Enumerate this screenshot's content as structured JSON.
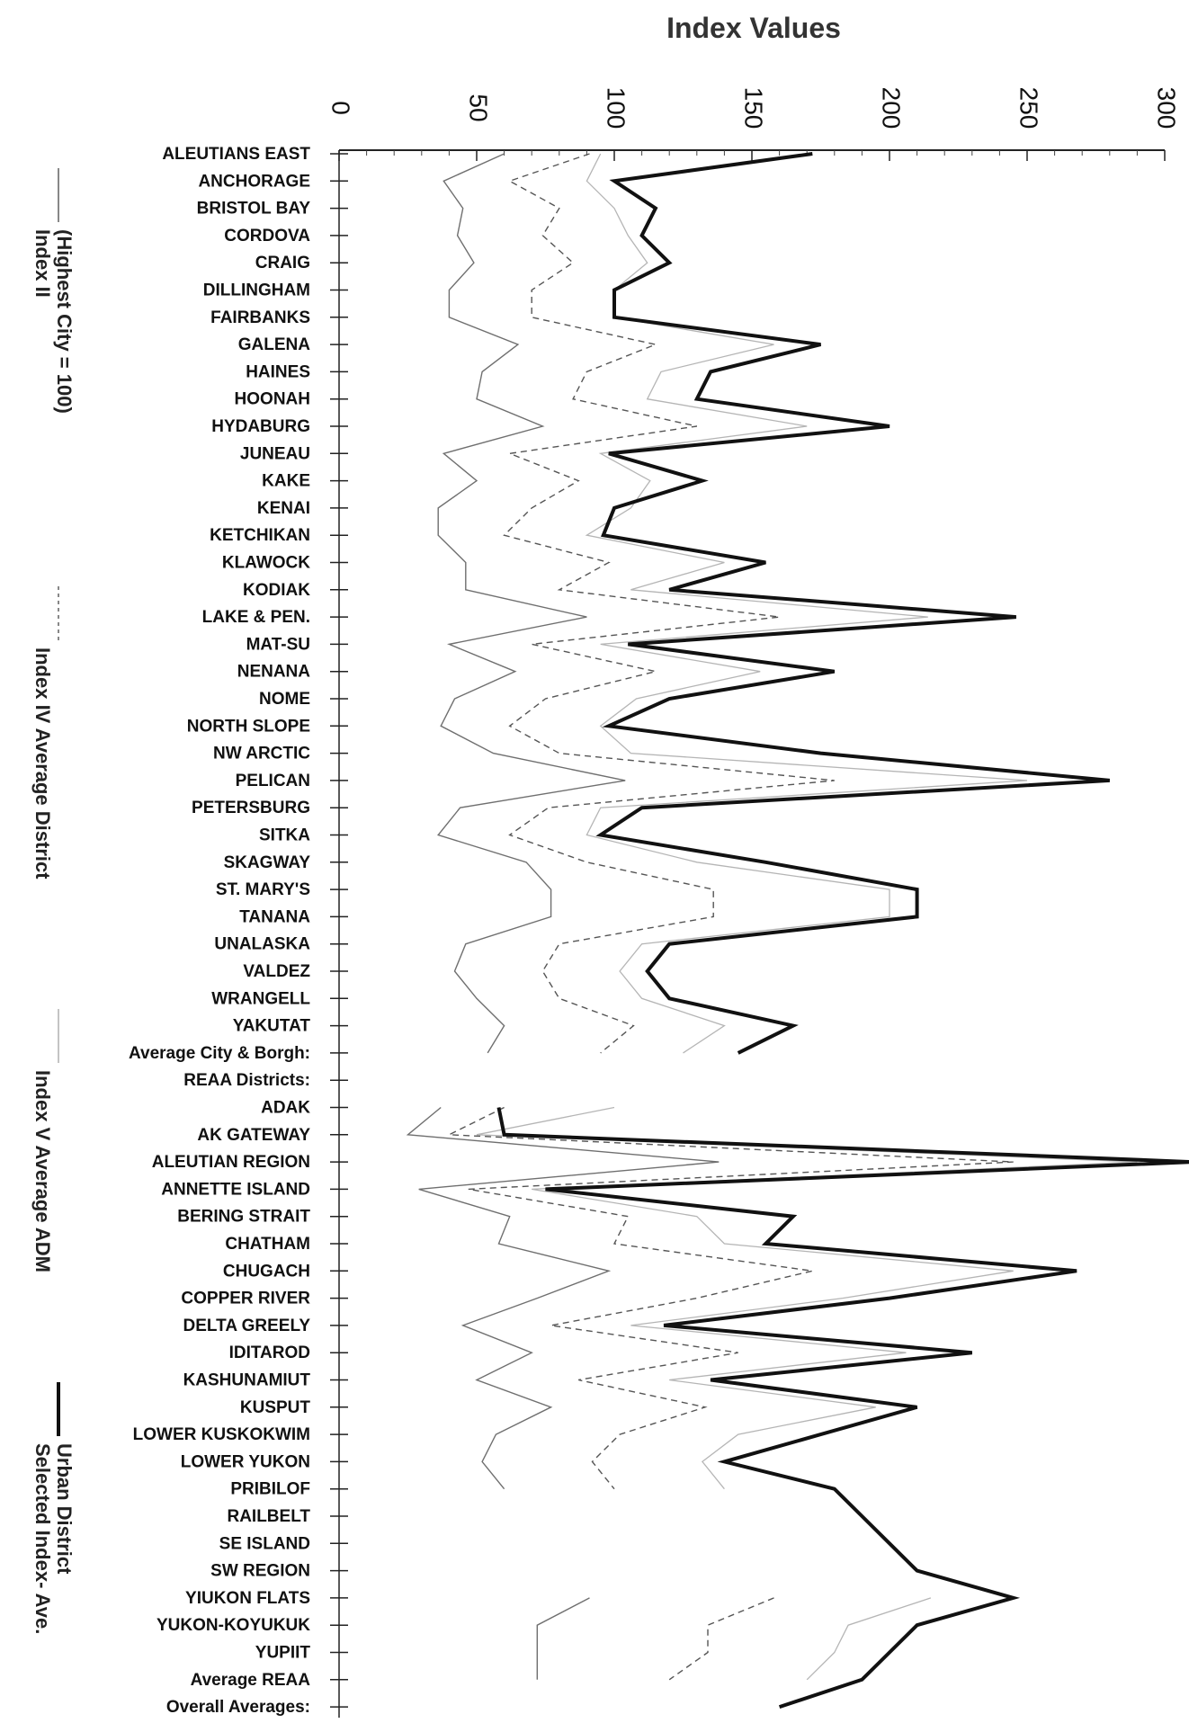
{
  "chart_data": {
    "type": "line",
    "orientation": "rotated-90-clockwise",
    "title": "",
    "ylabel": "Index Values",
    "xlabel": "",
    "ylim": [
      0,
      300
    ],
    "yticks": [
      "0",
      "50",
      "100",
      "150",
      "200",
      "250",
      "300"
    ],
    "grid": false,
    "legend_placement": "right",
    "categories": [
      "ALEUTIANS EAST",
      "ANCHORAGE",
      "BRISTOL BAY",
      "CORDOVA",
      "CRAIG",
      "DILLINGHAM",
      "FAIRBANKS",
      "GALENA",
      "HAINES",
      "HOONAH",
      "HYDABURG",
      "JUNEAU",
      "KAKE",
      "KENAI",
      "KETCHIKAN",
      "KLAWOCK",
      "KODIAK",
      "LAKE & PEN.",
      "MAT-SU",
      "NENANA",
      "NOME",
      "NORTH SLOPE",
      "NW ARCTIC",
      "PELICAN",
      "PETERSBURG",
      "SITKA",
      "SKAGWAY",
      "ST. MARY'S",
      "TANANA",
      "UNALASKA",
      "VALDEZ",
      "WRANGELL",
      "YAKUTAT",
      "Average City & Borgh:",
      "REAA Districts:",
      "ADAK",
      "AK GATEWAY",
      "ALEUTIAN REGION",
      "ANNETTE ISLAND",
      "BERING STRAIT",
      "CHATHAM",
      "CHUGACH",
      "COPPER RIVER",
      "DELTA GREELY",
      "IDITAROD",
      "KASHUNAMIUT",
      "KUSPUT",
      "LOWER KUSKOKWIM",
      "LOWER YUKON",
      "PRIBILOF",
      "RAILBELT",
      "SE ISLAND",
      "SW REGION",
      "YIUKON FLATS",
      "YUKON-KOYUKUK",
      "YUPIIT",
      "Average REAA",
      "Overall Averages:"
    ],
    "series": [
      {
        "name": "Index II (Highest City = 100)",
        "style": "thin-solid",
        "values": [
          60,
          38,
          45,
          43,
          49,
          40,
          40,
          65,
          52,
          50,
          74,
          38,
          50,
          36,
          36,
          46,
          46,
          90,
          40,
          64,
          42,
          37,
          56,
          104,
          44,
          36,
          68,
          77,
          77,
          46,
          42,
          50,
          60,
          54,
          null,
          37,
          25,
          138,
          29,
          62,
          58,
          98,
          72,
          45,
          70,
          50,
          77,
          57,
          52,
          60,
          null,
          null,
          null,
          91,
          72,
          72,
          72,
          null
        ]
      },
      {
        "name": "Index IV Average District",
        "style": "dashed",
        "values": [
          91,
          62,
          80,
          74,
          85,
          70,
          70,
          115,
          90,
          85,
          130,
          62,
          87,
          70,
          60,
          98,
          80,
          160,
          70,
          115,
          75,
          62,
          80,
          180,
          76,
          62,
          90,
          136,
          136,
          80,
          74,
          80,
          107,
          95,
          null,
          60,
          40,
          245,
          47,
          105,
          100,
          172,
          130,
          77,
          145,
          87,
          133,
          102,
          92,
          100,
          null,
          null,
          null,
          158,
          134,
          134,
          120,
          null
        ]
      },
      {
        "name": "Index V Average ADM",
        "style": "light-solid",
        "values": [
          95,
          90,
          100,
          105,
          112,
          100,
          100,
          158,
          117,
          112,
          170,
          95,
          113,
          106,
          90,
          140,
          106,
          214,
          95,
          153,
          108,
          95,
          106,
          250,
          95,
          90,
          130,
          200,
          200,
          110,
          102,
          110,
          140,
          125,
          null,
          100,
          50,
          290,
          70,
          130,
          140,
          245,
          183,
          106,
          206,
          120,
          195,
          145,
          132,
          140,
          null,
          null,
          null,
          215,
          185,
          180,
          170,
          null
        ]
      },
      {
        "name": "Selected Index- Ave. Urban District",
        "style": "thick-solid",
        "values": [
          172,
          100,
          115,
          110,
          120,
          100,
          100,
          175,
          135,
          130,
          200,
          98,
          132,
          100,
          96,
          155,
          120,
          246,
          105,
          180,
          120,
          98,
          175,
          280,
          110,
          95,
          155,
          210,
          210,
          120,
          112,
          120,
          165,
          145,
          null,
          58,
          60,
          310,
          75,
          165,
          155,
          268,
          200,
          118,
          230,
          135,
          210,
          175,
          140,
          180,
          190,
          200,
          210,
          245,
          210,
          200,
          190,
          160
        ]
      }
    ]
  }
}
